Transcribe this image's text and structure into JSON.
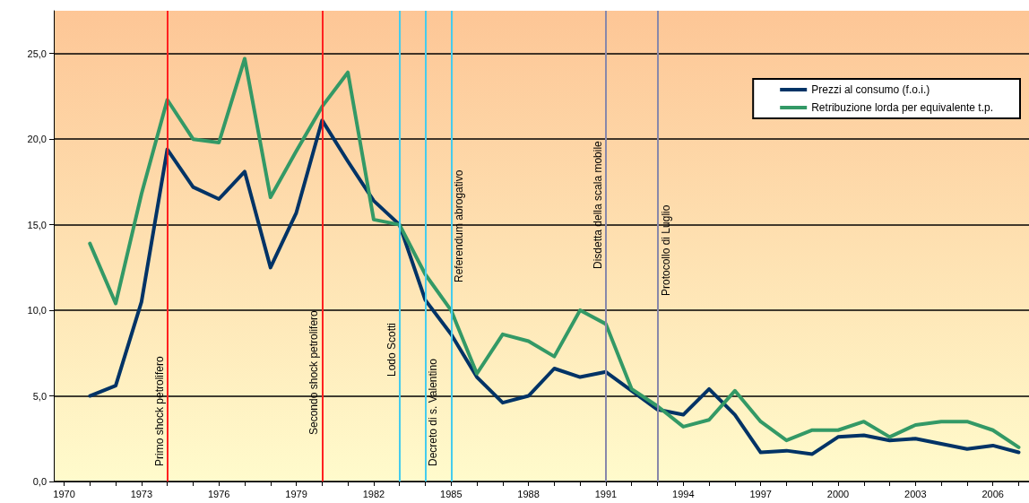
{
  "chart_data": {
    "type": "line",
    "x": [
      1971,
      1972,
      1973,
      1974,
      1975,
      1976,
      1977,
      1978,
      1979,
      1980,
      1981,
      1982,
      1983,
      1984,
      1985,
      1986,
      1987,
      1988,
      1989,
      1990,
      1991,
      1992,
      1993,
      1994,
      1995,
      1996,
      1997,
      1998,
      1999,
      2000,
      2001,
      2002,
      2003,
      2004,
      2005,
      2006,
      2007
    ],
    "series": [
      {
        "name": "Prezzi al consumo (f.o.i.)",
        "color": "#003366",
        "values": [
          5.0,
          5.6,
          10.5,
          19.4,
          17.2,
          16.5,
          18.1,
          12.5,
          15.7,
          21.1,
          18.7,
          16.4,
          15.0,
          10.6,
          8.6,
          6.1,
          4.6,
          5.0,
          6.6,
          6.1,
          6.4,
          5.3,
          4.2,
          3.9,
          5.4,
          3.9,
          1.7,
          1.8,
          1.6,
          2.6,
          2.7,
          2.4,
          2.5,
          2.2,
          1.9,
          2.1,
          1.7
        ]
      },
      {
        "name": "Retribuzione lorda per equivalente t.p.",
        "color": "#339966",
        "values": [
          13.9,
          10.4,
          16.8,
          22.3,
          20.0,
          19.8,
          24.7,
          16.6,
          19.3,
          21.9,
          23.9,
          15.3,
          15.0,
          12.1,
          10.0,
          6.3,
          8.6,
          8.2,
          7.3,
          10.0,
          9.2,
          5.4,
          4.4,
          3.2,
          3.6,
          5.3,
          3.5,
          2.4,
          3.0,
          3.0,
          3.5,
          2.6,
          3.3,
          3.5,
          3.5,
          3.0,
          2.0
        ]
      }
    ],
    "xlim": [
      1969.6,
      2007.4
    ],
    "xticks": [
      1970,
      {
        "value": 1971,
        "label": null
      },
      {
        "value": 1972,
        "label": null
      },
      1973,
      {
        "value": 1974,
        "label": null
      },
      {
        "value": 1975,
        "label": null
      },
      1976,
      {
        "value": 1977,
        "label": null
      },
      {
        "value": 1978,
        "label": null
      },
      1979,
      {
        "value": 1980,
        "label": null
      },
      {
        "value": 1981,
        "label": null
      },
      1982,
      {
        "value": 1983,
        "label": null
      },
      {
        "value": 1984,
        "label": null
      },
      1985,
      {
        "value": 1986,
        "label": null
      },
      {
        "value": 1987,
        "label": null
      },
      1988,
      {
        "value": 1989,
        "label": null
      },
      {
        "value": 1990,
        "label": null
      },
      1991,
      {
        "value": 1992,
        "label": null
      },
      {
        "value": 1993,
        "label": null
      },
      1994,
      {
        "value": 1995,
        "label": null
      },
      {
        "value": 1996,
        "label": null
      },
      1997,
      {
        "value": 1998,
        "label": null
      },
      {
        "value": 1999,
        "label": null
      },
      2000,
      {
        "value": 2001,
        "label": null
      },
      {
        "value": 2002,
        "label": null
      },
      2003,
      {
        "value": 2004,
        "label": null
      },
      {
        "value": 2005,
        "label": null
      },
      2006,
      {
        "value": 2007,
        "label": null
      }
    ],
    "ylim": [
      0,
      27.5
    ],
    "yticks": [
      {
        "value": 0,
        "label": "0,0"
      },
      {
        "value": 5,
        "label": "5,0"
      },
      {
        "value": 10,
        "label": "10,0"
      },
      {
        "value": 15,
        "label": "15,0"
      },
      {
        "value": 20,
        "label": "20,0"
      },
      {
        "value": 25,
        "label": "25,0"
      }
    ],
    "ref_lines": [
      {
        "axis": "x",
        "value": 1974,
        "label": "Primo shock petrolifero",
        "color": "#ff2020"
      },
      {
        "axis": "x",
        "value": 1980,
        "label": "Secondo shock petrolifero",
        "color": "#ff2020"
      },
      {
        "axis": "x",
        "value": 1983,
        "label": "Lodo Scotti",
        "color": "#44ccee"
      },
      {
        "axis": "x",
        "value": 1984,
        "label": "Decreto di s. Valentino",
        "color": "#44ccee"
      },
      {
        "axis": "x",
        "value": 1985,
        "label": "Referendum abrogativo",
        "color": "#44ccee"
      },
      {
        "axis": "x",
        "value": 1991,
        "label": "Disdetta della scala mobile",
        "color": "#8888aa"
      },
      {
        "axis": "x",
        "value": 1993,
        "label": "Protocollo di Luglio",
        "color": "#8888aa"
      }
    ],
    "grid": "y",
    "legend": "top right",
    "marker": "none",
    "line_style": "solid"
  }
}
